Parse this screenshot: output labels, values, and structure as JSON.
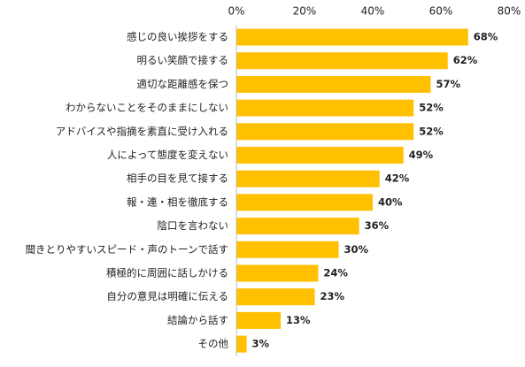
{
  "chart_data": {
    "type": "bar",
    "orientation": "horizontal",
    "categories": [
      "感じの良い挨拶をする",
      "明るい笑顔で接する",
      "適切な距離感を保つ",
      "わからないことをそのままにしない",
      "アドバイスや指摘を素直に受け入れる",
      "人によって態度を変えない",
      "相手の目を見て接する",
      "報・連・相を徹底する",
      "陰口を言わない",
      "聞きとりやすいスピード・声のトーンで話す",
      "積極的に周囲に話しかける",
      "自分の意見は明確に伝える",
      "結論から話す",
      "その他"
    ],
    "values": [
      68,
      62,
      57,
      52,
      52,
      49,
      42,
      40,
      36,
      30,
      24,
      23,
      13,
      3
    ],
    "value_labels": [
      "68%",
      "62%",
      "57%",
      "52%",
      "52%",
      "49%",
      "42%",
      "40%",
      "36%",
      "30%",
      "24%",
      "23%",
      "13%",
      "3%"
    ],
    "xlim": [
      0,
      80
    ],
    "x_ticks": [
      0,
      20,
      40,
      60,
      80
    ],
    "x_tick_labels": [
      "0%",
      "20%",
      "40%",
      "60%",
      "80%"
    ],
    "axis_position": "top",
    "grid": false,
    "bar_color": "#FFC000"
  }
}
